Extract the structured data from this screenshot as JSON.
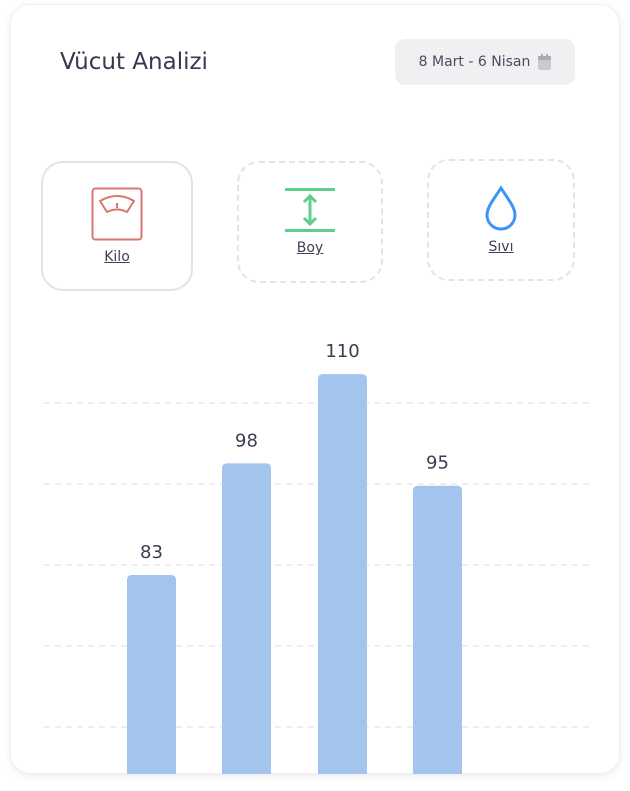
{
  "header": {
    "title": "Vücut Analizi",
    "date_range": "8 Mart - 6 Nisan",
    "date_icon": "calendar-icon"
  },
  "tabs": [
    {
      "label": "Kilo",
      "icon": "scale-icon",
      "color": "#d9776f",
      "active": true
    },
    {
      "label": "Boy",
      "icon": "height-icon",
      "color": "#5ccf8b",
      "active": false
    },
    {
      "label": "Sıvı",
      "icon": "water-drop-icon",
      "color": "#3d94f6",
      "active": false
    }
  ],
  "chart_data": {
    "type": "bar",
    "values": [
      83,
      98,
      110,
      95
    ],
    "data_labels": [
      "83",
      "98",
      "110",
      "95"
    ],
    "bar_color": "#a2c4ed",
    "grid": true
  }
}
